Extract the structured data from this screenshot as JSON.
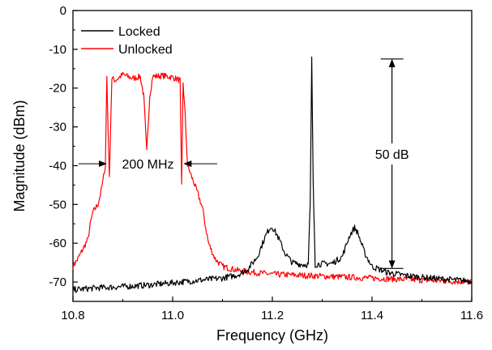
{
  "chart_data": {
    "type": "line",
    "title": "",
    "xlabel": "Frequency (GHz)",
    "ylabel": "Magnitude (dBm)",
    "xlim": [
      10.8,
      11.6
    ],
    "ylim": [
      -75,
      0
    ],
    "xticks": [
      "10.8",
      "11.0",
      "11.2",
      "11.4",
      "11.6"
    ],
    "yticks": [
      "0",
      "-10",
      "-20",
      "-30",
      "-40",
      "-50",
      "-60",
      "-70"
    ],
    "xtick_values": [
      10.8,
      11.0,
      11.2,
      11.4,
      11.6
    ],
    "ytick_values": [
      0,
      -10,
      -20,
      -30,
      -40,
      -50,
      -60,
      -70
    ],
    "grid": false,
    "legend_position": "top-left",
    "series": [
      {
        "name": "Locked",
        "color": "#000000",
        "points": [
          [
            10.8,
            -72
          ],
          [
            10.85,
            -71.5
          ],
          [
            10.9,
            -71.2
          ],
          [
            10.95,
            -70.8
          ],
          [
            11.0,
            -70.2
          ],
          [
            11.05,
            -69.6
          ],
          [
            11.1,
            -69.0
          ],
          [
            11.13,
            -68.2
          ],
          [
            11.15,
            -66.8
          ],
          [
            11.17,
            -63.5
          ],
          [
            11.185,
            -58.5
          ],
          [
            11.195,
            -56.0
          ],
          [
            11.2,
            -55.8
          ],
          [
            11.21,
            -58.0
          ],
          [
            11.225,
            -62.5
          ],
          [
            11.24,
            -65.0
          ],
          [
            11.26,
            -65.5
          ],
          [
            11.272,
            -65.5
          ],
          [
            11.276,
            -50.0
          ],
          [
            11.279,
            -12.5
          ],
          [
            11.282,
            -45.0
          ],
          [
            11.286,
            -65.5
          ],
          [
            11.3,
            -65.3
          ],
          [
            11.32,
            -65.2
          ],
          [
            11.34,
            -63.5
          ],
          [
            11.355,
            -58.0
          ],
          [
            11.365,
            -56.0
          ],
          [
            11.372,
            -57.5
          ],
          [
            11.385,
            -62.5
          ],
          [
            11.4,
            -66.0
          ],
          [
            11.43,
            -67.5
          ],
          [
            11.46,
            -68.2
          ],
          [
            11.5,
            -68.8
          ],
          [
            11.55,
            -69.3
          ],
          [
            11.6,
            -69.8
          ]
        ]
      },
      {
        "name": "Unlocked",
        "color": "#ff0000",
        "points": [
          [
            10.8,
            -66.0
          ],
          [
            10.81,
            -64.0
          ],
          [
            10.82,
            -61.5
          ],
          [
            10.83,
            -59.0
          ],
          [
            10.835,
            -55.0
          ],
          [
            10.84,
            -52.0
          ],
          [
            10.85,
            -50.0
          ],
          [
            10.855,
            -47.5
          ],
          [
            10.86,
            -44.0
          ],
          [
            10.865,
            -40.0
          ],
          [
            10.868,
            -17.0
          ],
          [
            10.873,
            -43.5
          ],
          [
            10.878,
            -17.5
          ],
          [
            10.885,
            -18.0
          ],
          [
            10.9,
            -16.5
          ],
          [
            10.92,
            -17.5
          ],
          [
            10.935,
            -17.0
          ],
          [
            10.942,
            -22.0
          ],
          [
            10.948,
            -36.5
          ],
          [
            10.954,
            -22.0
          ],
          [
            10.96,
            -17.0
          ],
          [
            10.98,
            -16.8
          ],
          [
            11.0,
            -17.2
          ],
          [
            11.015,
            -18.0
          ],
          [
            11.018,
            -45.5
          ],
          [
            11.021,
            -18.5
          ],
          [
            11.025,
            -27.0
          ],
          [
            11.03,
            -40.0
          ],
          [
            11.04,
            -43.5
          ],
          [
            11.05,
            -47.0
          ],
          [
            11.06,
            -51.0
          ],
          [
            11.065,
            -55.0
          ],
          [
            11.072,
            -60.0
          ],
          [
            11.085,
            -64.0
          ],
          [
            11.1,
            -66.0
          ],
          [
            11.13,
            -67.0
          ],
          [
            11.16,
            -67.5
          ],
          [
            11.2,
            -68.0
          ],
          [
            11.3,
            -68.5
          ],
          [
            11.4,
            -69.0
          ],
          [
            11.5,
            -69.5
          ],
          [
            11.6,
            -70.0
          ]
        ]
      }
    ],
    "annotations": [
      {
        "text": "200 MHz",
        "type": "horizontal-arrows",
        "x_from": 10.868,
        "x_to": 11.02,
        "y": -39.5
      },
      {
        "text": "50 dB",
        "type": "vertical-double-arrow",
        "x": 11.44,
        "y_from": -12.5,
        "y_to": -66.5
      }
    ]
  }
}
